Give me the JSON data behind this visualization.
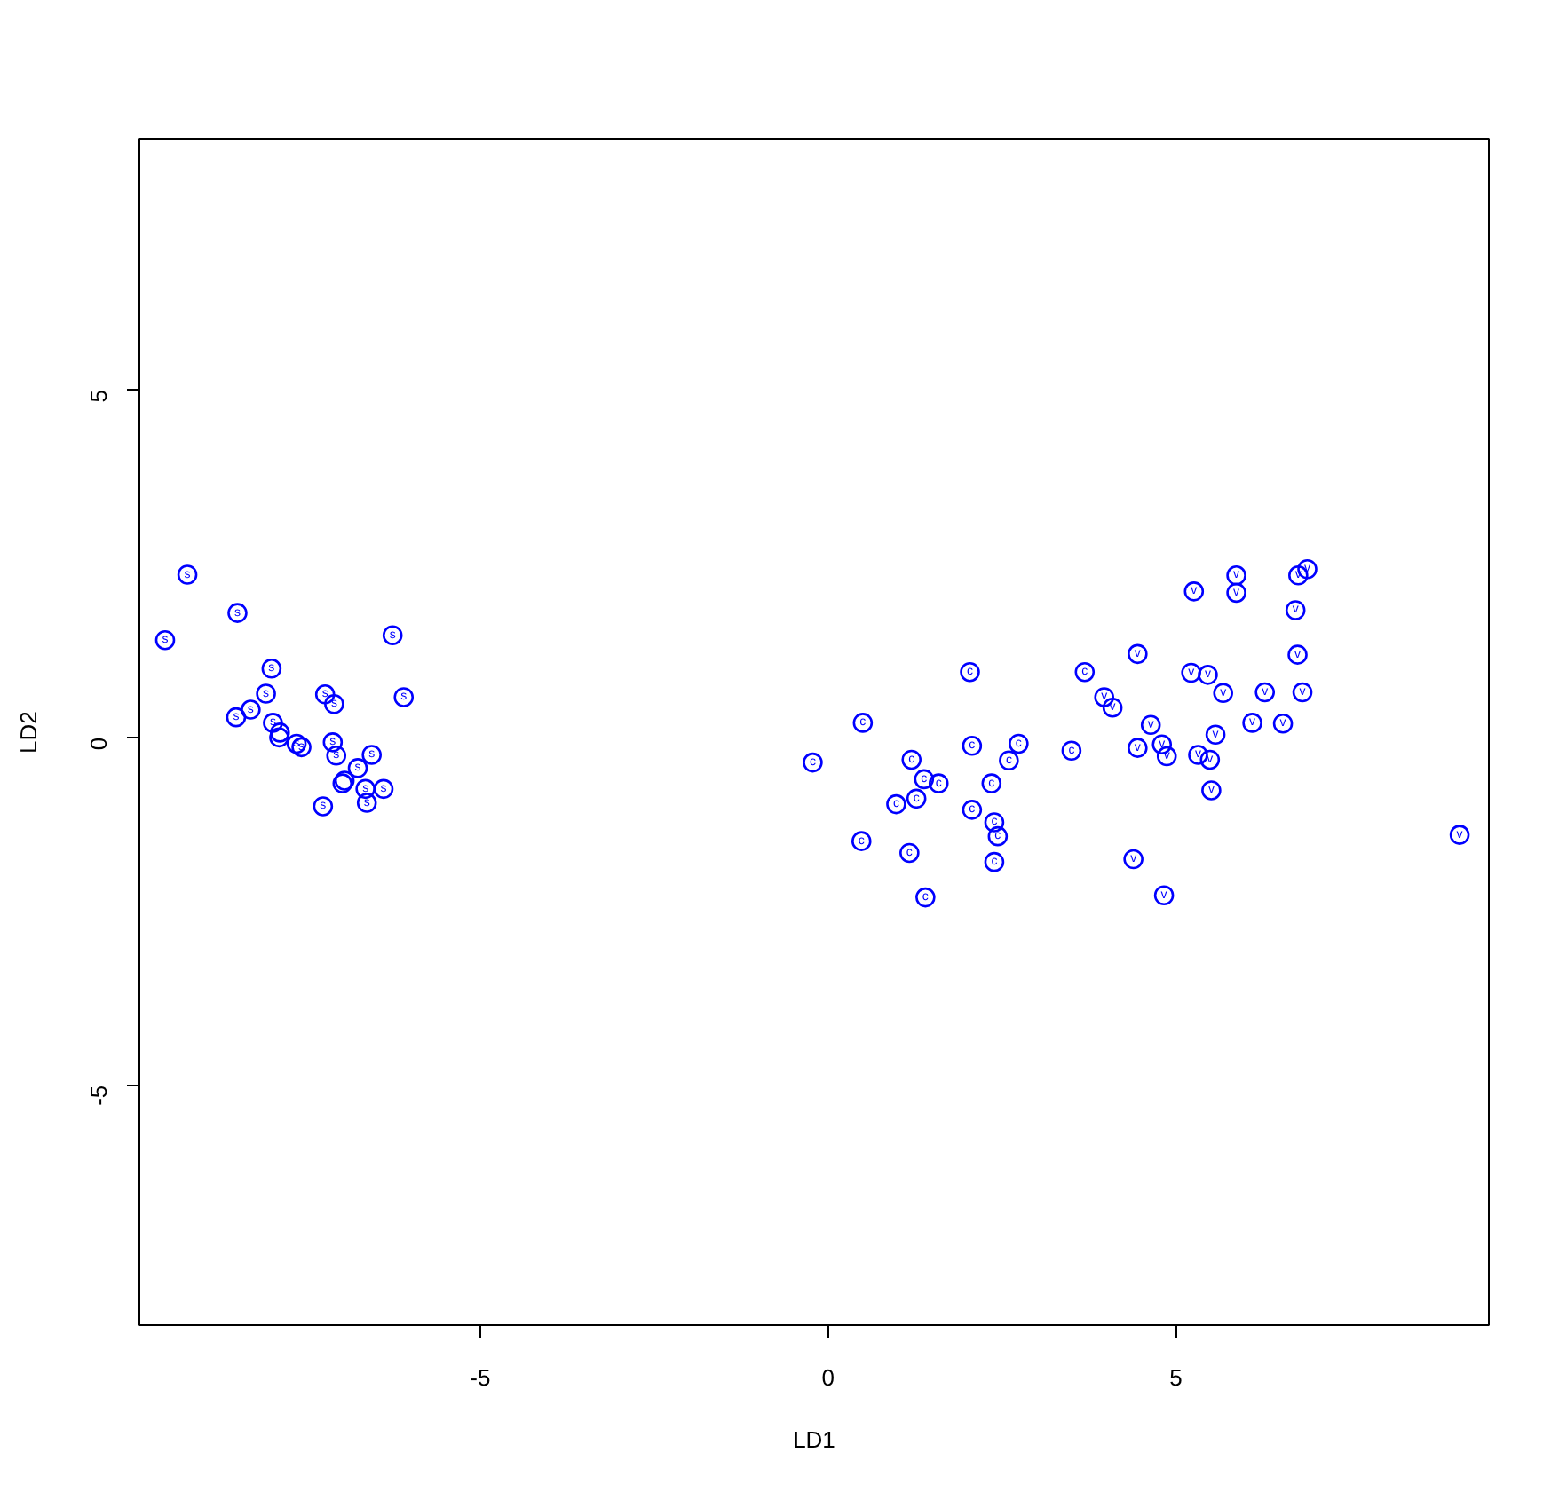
{
  "chart_data": {
    "type": "scatter",
    "xlabel": "LD1",
    "ylabel": "LD2",
    "xlim": [
      -9.9,
      9.5
    ],
    "ylim": [
      -8.45,
      8.6
    ],
    "xticks": [
      -5,
      0,
      5
    ],
    "yticks": [
      -5,
      0,
      5
    ],
    "marker": "circle",
    "grid": false,
    "series": [
      {
        "name": "s",
        "color": "#0000ff",
        "x": [
          -9.21,
          -8.49,
          -9.53,
          -6.26,
          -8.0,
          -8.08,
          -7.23,
          -7.1,
          -6.1,
          -8.3,
          -8.51,
          -7.98,
          -7.88,
          -7.89,
          -7.64,
          -7.57,
          -7.12,
          -7.07,
          -6.56,
          -6.76,
          -6.95,
          -6.98,
          -6.65,
          -6.39,
          -6.63,
          -7.26
        ],
        "values": [
          2.34,
          1.79,
          1.4,
          1.47,
          0.99,
          0.63,
          0.62,
          0.48,
          0.58,
          0.4,
          0.29,
          0.21,
          0.07,
          0.0,
          -0.09,
          -0.14,
          -0.07,
          -0.26,
          -0.25,
          -0.44,
          -0.62,
          -0.66,
          -0.74,
          -0.74,
          -0.94,
          -0.99
        ]
      },
      {
        "name": "c",
        "color": "#0000ff",
        "x": [
          2.04,
          3.69,
          0.5,
          -0.22,
          1.2,
          2.07,
          2.74,
          2.6,
          3.5,
          1.38,
          1.59,
          2.35,
          1.27,
          0.98,
          2.07,
          2.39,
          2.44,
          0.48,
          1.17,
          2.39,
          1.4
        ],
        "values": [
          0.94,
          0.94,
          0.21,
          -0.36,
          -0.32,
          -0.12,
          -0.09,
          -0.33,
          -0.19,
          -0.6,
          -0.66,
          -0.66,
          -0.88,
          -0.96,
          -1.04,
          -1.22,
          -1.42,
          -1.49,
          -1.66,
          -1.79,
          -2.3
        ]
      },
      {
        "name": "v",
        "color": "#0000ff",
        "x": [
          5.87,
          6.76,
          6.89,
          5.26,
          5.87,
          6.72,
          6.75,
          4.45,
          5.22,
          5.46,
          3.97,
          4.09,
          5.68,
          6.28,
          6.82,
          4.64,
          6.1,
          6.54,
          5.57,
          4.45,
          4.8,
          4.87,
          5.32,
          5.49,
          5.51,
          9.08,
          4.39,
          4.83
        ],
        "values": [
          2.33,
          2.33,
          2.42,
          2.1,
          2.08,
          1.83,
          1.19,
          1.2,
          0.93,
          0.9,
          0.58,
          0.43,
          0.64,
          0.65,
          0.65,
          0.18,
          0.21,
          0.2,
          0.04,
          -0.15,
          -0.1,
          -0.27,
          -0.25,
          -0.32,
          -0.76,
          -1.4,
          -1.75,
          -2.27
        ]
      }
    ]
  }
}
